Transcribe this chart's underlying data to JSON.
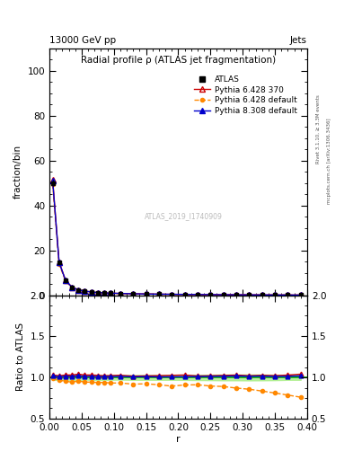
{
  "title": "Radial profile ρ (ATLAS jet fragmentation)",
  "top_left_label": "13000 GeV pp",
  "top_right_label": "Jets",
  "ylabel_main": "fraction/bin",
  "ylabel_ratio": "Ratio to ATLAS",
  "xlabel": "r",
  "right_label_top": "Rivet 3.1.10, ≥ 3.3M events",
  "right_label_bottom": "mcplots.cern.ch [arXiv:1306.3436]",
  "watermark": "ATLAS_2019_I1740909",
  "r_values": [
    0.005,
    0.015,
    0.025,
    0.035,
    0.045,
    0.055,
    0.065,
    0.075,
    0.085,
    0.095,
    0.11,
    0.13,
    0.15,
    0.17,
    0.19,
    0.21,
    0.23,
    0.25,
    0.27,
    0.29,
    0.31,
    0.33,
    0.35,
    0.37,
    0.39
  ],
  "atlas_y": [
    50.0,
    14.5,
    6.5,
    3.5,
    2.3,
    1.8,
    1.4,
    1.15,
    1.0,
    0.88,
    0.75,
    0.62,
    0.52,
    0.45,
    0.38,
    0.33,
    0.28,
    0.24,
    0.2,
    0.17,
    0.14,
    0.115,
    0.09,
    0.07,
    0.05
  ],
  "atlas_yerr": [
    1.5,
    0.4,
    0.2,
    0.1,
    0.07,
    0.05,
    0.04,
    0.035,
    0.03,
    0.025,
    0.02,
    0.018,
    0.015,
    0.013,
    0.011,
    0.01,
    0.009,
    0.008,
    0.007,
    0.006,
    0.005,
    0.004,
    0.003,
    0.002,
    0.002
  ],
  "pythia6_370_y": [
    51.5,
    14.8,
    6.7,
    3.6,
    2.4,
    1.85,
    1.44,
    1.18,
    1.02,
    0.9,
    0.77,
    0.63,
    0.53,
    0.46,
    0.39,
    0.34,
    0.285,
    0.245,
    0.205,
    0.175,
    0.143,
    0.118,
    0.092,
    0.072,
    0.052
  ],
  "pythia6_default_y": [
    49.5,
    14.0,
    6.2,
    3.3,
    2.2,
    1.7,
    1.32,
    1.08,
    0.94,
    0.82,
    0.7,
    0.57,
    0.48,
    0.41,
    0.34,
    0.3,
    0.255,
    0.215,
    0.178,
    0.148,
    0.12,
    0.096,
    0.073,
    0.055,
    0.038
  ],
  "pythia8_default_y": [
    51.0,
    14.6,
    6.6,
    3.55,
    2.35,
    1.82,
    1.42,
    1.16,
    1.01,
    0.89,
    0.76,
    0.625,
    0.525,
    0.453,
    0.383,
    0.333,
    0.283,
    0.243,
    0.203,
    0.173,
    0.142,
    0.117,
    0.091,
    0.071,
    0.051
  ],
  "ratio_pythia6_370": [
    1.03,
    1.02,
    1.03,
    1.03,
    1.04,
    1.03,
    1.03,
    1.026,
    1.02,
    1.023,
    1.027,
    1.016,
    1.019,
    1.022,
    1.026,
    1.03,
    1.018,
    1.021,
    1.025,
    1.029,
    1.021,
    1.026,
    1.022,
    1.029,
    1.04
  ],
  "ratio_pythia6_default": [
    0.99,
    0.966,
    0.954,
    0.943,
    0.957,
    0.944,
    0.943,
    0.939,
    0.94,
    0.932,
    0.933,
    0.919,
    0.923,
    0.911,
    0.895,
    0.909,
    0.911,
    0.896,
    0.89,
    0.871,
    0.857,
    0.835,
    0.811,
    0.786,
    0.76
  ],
  "ratio_pythia8_default": [
    1.02,
    1.007,
    1.015,
    1.014,
    1.022,
    1.011,
    1.014,
    1.009,
    1.01,
    1.011,
    1.013,
    1.008,
    1.01,
    1.007,
    1.008,
    1.009,
    1.011,
    1.013,
    1.015,
    1.018,
    1.014,
    1.017,
    1.011,
    1.014,
    1.02
  ],
  "atlas_band_err": [
    0.03,
    0.028,
    0.031,
    0.029,
    0.03,
    0.028,
    0.029,
    0.03,
    0.03,
    0.028,
    0.027,
    0.029,
    0.029,
    0.029,
    0.029,
    0.03,
    0.032,
    0.033,
    0.035,
    0.035,
    0.036,
    0.035,
    0.033,
    0.029,
    0.029
  ],
  "color_atlas": "#000000",
  "color_p6_370": "#cc0000",
  "color_p6_default": "#ff8800",
  "color_p8_default": "#0000cc",
  "color_band_green": "#aaee88",
  "color_ref_line": "#00aa00",
  "ylim_main": [
    0,
    110
  ],
  "ylim_ratio": [
    0.5,
    2.0
  ],
  "yticks_main": [
    0,
    20,
    40,
    60,
    80,
    100
  ],
  "yticks_ratio": [
    0.5,
    1.0,
    1.5,
    2.0
  ],
  "xlim": [
    0,
    0.4
  ]
}
